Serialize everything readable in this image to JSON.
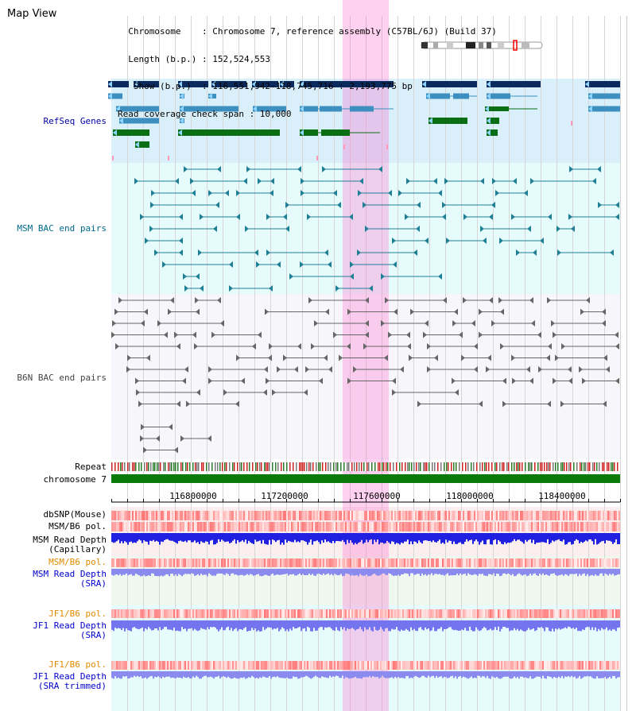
{
  "header": {
    "title": "Map View",
    "info": [
      "  Chromosome    : Chromosome 7, reference assembly (C57BL/6J) (Build 37)",
      "  Length (b.p.) : 152,524,553",
      "   Show (b.p.)  : 116,551,942-118,745,716 : 2,193,775 bp",
      "Read coverage check span : 10,000"
    ]
  },
  "tracks": {
    "refseq": {
      "label": "RefSeq Genes",
      "color": "#0000aa"
    },
    "msm_bac": {
      "label": "MSM BAC end pairs",
      "color": "#006a8a"
    },
    "b6n_bac": {
      "label": "B6N BAC end pairs",
      "color": "#444444"
    },
    "repeat": {
      "label": "Repeat"
    },
    "chromosome": {
      "label": "chromosome 7"
    },
    "axis_ticks": [
      "116800000",
      "117200000",
      "117600000",
      "118000000",
      "118400000"
    ],
    "dbsnp": {
      "label": "dbSNP(Mouse)"
    },
    "msm_b6_pol_1": {
      "label": "MSM/B6 pol."
    },
    "msm_depth_cap": {
      "label": "MSM Read Depth\n(Capillary)",
      "color": "#000000"
    },
    "msm_b6_pol_2": {
      "label": "MSM/B6 pol.",
      "color": "#e08a00"
    },
    "msm_depth_sra": {
      "label": "MSM Read Depth\n(SRA)",
      "color": "#0000cc"
    },
    "jf1_b6_pol_1": {
      "label": "JF1/B6 pol.",
      "color": "#e08a00"
    },
    "jf1_depth_sra": {
      "label": "JF1 Read Depth\n(SRA)",
      "color": "#0000cc"
    },
    "jf1_b6_pol_2": {
      "label": "JF1/B6 pol.",
      "color": "#e08a00"
    },
    "jf1_depth_trim": {
      "label": "JF1 Read Depth\n(SRA trimmed)",
      "color": "#0000cc"
    }
  }
}
